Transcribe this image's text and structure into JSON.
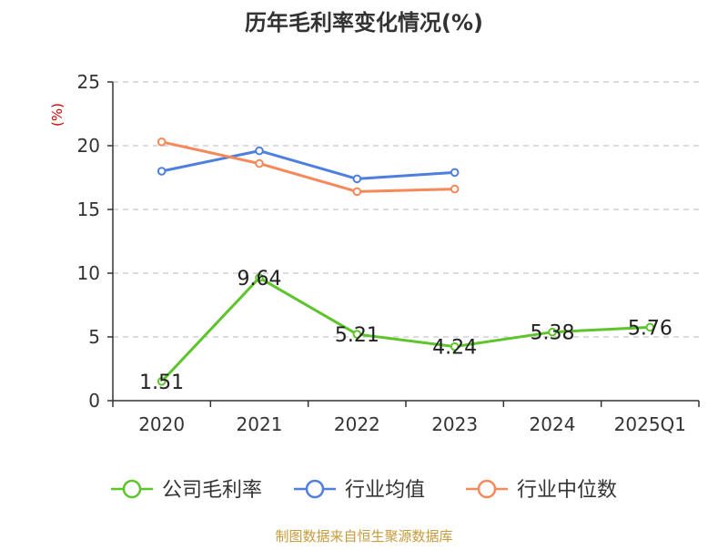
{
  "chart_data": {
    "type": "line",
    "title": "历年毛利率变化情况(%)",
    "ylabel": "(%)",
    "xlabel": "",
    "categories": [
      "2020",
      "2021",
      "2022",
      "2023",
      "2024",
      "2025Q1"
    ],
    "ylim": [
      0,
      25
    ],
    "yticks": [
      0,
      5,
      10,
      15,
      20,
      25
    ],
    "grid": true,
    "legend_position": "bottom-center",
    "series": [
      {
        "name": "公司毛利率",
        "color": "#5dc42c",
        "show_labels": true,
        "values": [
          1.51,
          9.64,
          5.21,
          4.24,
          5.38,
          5.76
        ],
        "labels": [
          "1.51",
          "9.64",
          "5.21",
          "4.24",
          "5.38",
          "5.76"
        ]
      },
      {
        "name": "行业均值",
        "color": "#4f7fde",
        "show_labels": false,
        "values": [
          18.0,
          19.6,
          17.4,
          17.9,
          null,
          null
        ]
      },
      {
        "name": "行业中位数",
        "color": "#f5895a",
        "show_labels": false,
        "values": [
          20.3,
          18.6,
          16.4,
          16.6,
          null,
          null
        ]
      }
    ]
  },
  "source_note": "制图数据来自恒生聚源数据库",
  "colors": {
    "title": "#333333",
    "axis": "#333333",
    "grid": "#c8c8c8",
    "ylabel": "#cc0000",
    "source": "#c79a3c"
  }
}
